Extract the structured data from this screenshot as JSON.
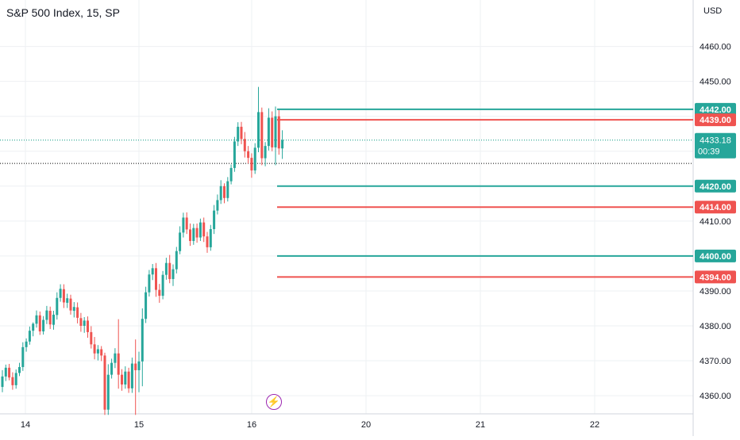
{
  "header": {
    "title": "S&P 500 Index, 15, SP",
    "currency": "USD"
  },
  "colors": {
    "up": "#26a69a",
    "down": "#ef5350",
    "grid": "#eef0f3",
    "axis_text": "#131722",
    "dotted_price": "#089981",
    "dotted_black": "#000000",
    "badge": "#9c27b0"
  },
  "icons": {
    "badge": "lightning-icon"
  },
  "chart_data": {
    "type": "candlestick",
    "title": "S&P 500 Index, 15, SP",
    "ylabel": "USD",
    "ylim": [
      4354.8,
      4473.3
    ],
    "y_ticks": [
      4360,
      4370,
      4380,
      4390,
      4400,
      4410,
      4420,
      4430,
      4440,
      4450,
      4460
    ],
    "y_tick_labels": [
      "4360.00",
      "4370.00",
      "4380.00",
      "4390.00",
      "4400.00",
      "4410.00",
      "4420.00",
      "4430.00",
      "4440.00",
      "4450.00",
      "4460.00"
    ],
    "x_ticks": [
      "14",
      "15",
      "16",
      "20",
      "21",
      "22"
    ],
    "grid": true,
    "current_price": {
      "value": 4433.18,
      "label": "4433.18",
      "countdown": "00:39"
    },
    "reference_line": 4426.5,
    "levels": [
      {
        "value": 4442.0,
        "label": "4442.00",
        "color": "green"
      },
      {
        "value": 4439.0,
        "label": "4439.00",
        "color": "red"
      },
      {
        "value": 4420.0,
        "label": "4420.00",
        "color": "green"
      },
      {
        "value": 4414.0,
        "label": "4414.00",
        "color": "red"
      },
      {
        "value": 4400.0,
        "label": "4400.00",
        "color": "green"
      },
      {
        "value": 4394.0,
        "label": "4394.00",
        "color": "red"
      }
    ],
    "candles": [
      [
        4362.5,
        4367.3,
        4361.0,
        4365.5
      ],
      [
        4365.5,
        4368.9,
        4364.2,
        4368.0
      ],
      [
        4368.0,
        4369.1,
        4364.4,
        4365.2
      ],
      [
        4365.3,
        4366.7,
        4361.7,
        4363.0
      ],
      [
        4363.0,
        4367.5,
        4362.0,
        4366.5
      ],
      [
        4366.5,
        4369.4,
        4365.6,
        4368.2
      ],
      [
        4368.2,
        4375.3,
        4367.1,
        4373.9
      ],
      [
        4373.9,
        4376.4,
        4372.6,
        4375.5
      ],
      [
        4375.5,
        4379.8,
        4374.6,
        4378.6
      ],
      [
        4378.6,
        4381.0,
        4377.0,
        4380.6
      ],
      [
        4380.6,
        4384.4,
        4379.5,
        4383.0
      ],
      [
        4383.0,
        4384.1,
        4377.4,
        4378.4
      ],
      [
        4378.4,
        4382.8,
        4377.5,
        4381.7
      ],
      [
        4381.7,
        4385.7,
        4380.5,
        4384.4
      ],
      [
        4384.3,
        4385.5,
        4379.1,
        4380.4
      ],
      [
        4380.3,
        4384.3,
        4378.9,
        4383.2
      ],
      [
        4383.1,
        4389.6,
        4381.8,
        4388.0
      ],
      [
        4388.0,
        4391.9,
        4386.9,
        4390.6
      ],
      [
        4390.5,
        4391.9,
        4385.1,
        4386.7
      ],
      [
        4386.6,
        4389.2,
        4385.1,
        4387.9
      ],
      [
        4387.8,
        4388.9,
        4383.2,
        4384.4
      ],
      [
        4384.3,
        4386.8,
        4382.4,
        4385.4
      ],
      [
        4385.3,
        4386.7,
        4380.7,
        4382.3
      ],
      [
        4382.2,
        4383.7,
        4378.3,
        4380.0
      ],
      [
        4380.0,
        4382.5,
        4378.0,
        4381.5
      ],
      [
        4381.5,
        4382.7,
        4376.6,
        4378.2
      ],
      [
        4378.2,
        4379.9,
        4373.5,
        4374.7
      ],
      [
        4374.7,
        4376.8,
        4370.4,
        4372.1
      ],
      [
        4372.1,
        4374.5,
        4370.1,
        4373.3
      ],
      [
        4373.3,
        4374.2,
        4369.9,
        4371.5
      ],
      [
        4371.5,
        4372.3,
        4354.5,
        4356.0
      ],
      [
        4356.0,
        4369.0,
        4354.5,
        4366.0
      ],
      [
        4366.0,
        4370.6,
        4364.9,
        4369.4
      ],
      [
        4369.4,
        4373.6,
        4367.9,
        4372.1
      ],
      [
        4372.1,
        4381.9,
        4362.0,
        4366.0
      ],
      [
        4366.0,
        4367.6,
        4361.4,
        4363.2
      ],
      [
        4363.2,
        4368.4,
        4362.0,
        4366.9
      ],
      [
        4366.9,
        4368.0,
        4360.8,
        4362.1
      ],
      [
        4362.1,
        4370.9,
        4360.8,
        4369.2
      ],
      [
        4369.2,
        4376.1,
        4354.5,
        4367.3
      ],
      [
        4367.3,
        4372.6,
        4361.0,
        4369.8
      ],
      [
        4369.8,
        4385.0,
        4362.7,
        4382.0
      ],
      [
        4382.0,
        4391.2,
        4380.8,
        4389.6
      ],
      [
        4389.6,
        4396.0,
        4388.4,
        4394.7
      ],
      [
        4394.7,
        4397.7,
        4393.1,
        4396.5
      ],
      [
        4396.5,
        4398.0,
        4388.3,
        4390.3
      ],
      [
        4390.3,
        4392.0,
        4386.6,
        4388.6
      ],
      [
        4388.6,
        4395.7,
        4387.6,
        4394.6
      ],
      [
        4394.6,
        4399.5,
        4393.2,
        4398.0
      ],
      [
        4398.0,
        4400.3,
        4392.2,
        4393.4
      ],
      [
        4393.4,
        4397.6,
        4391.4,
        4396.2
      ],
      [
        4396.2,
        4402.6,
        4395.0,
        4401.4
      ],
      [
        4401.4,
        4408.5,
        4400.5,
        4406.7
      ],
      [
        4406.7,
        4412.4,
        4405.3,
        4411.0
      ],
      [
        4411.0,
        4412.5,
        4406.3,
        4407.6
      ],
      [
        4407.6,
        4409.3,
        4402.9,
        4404.3
      ],
      [
        4404.3,
        4409.2,
        4403.2,
        4408.0
      ],
      [
        4408.0,
        4409.3,
        4403.8,
        4405.3
      ],
      [
        4405.3,
        4410.7,
        4404.3,
        4409.6
      ],
      [
        4409.6,
        4411.0,
        4404.0,
        4405.6
      ],
      [
        4405.6,
        4406.9,
        4400.9,
        4402.5
      ],
      [
        4402.5,
        4408.9,
        4401.5,
        4407.7
      ],
      [
        4407.7,
        4414.6,
        4406.3,
        4413.0
      ],
      [
        4413.0,
        4417.6,
        4411.9,
        4416.0
      ],
      [
        4416.0,
        4421.7,
        4414.9,
        4420.0
      ],
      [
        4420.0,
        4420.8,
        4415.1,
        4416.6
      ],
      [
        4416.6,
        4422.6,
        4415.6,
        4421.4
      ],
      [
        4421.4,
        4426.2,
        4420.5,
        4425.2
      ],
      [
        4425.2,
        4434.1,
        4424.1,
        4432.8
      ],
      [
        4432.8,
        4438.3,
        4431.5,
        4437.0
      ],
      [
        4437.0,
        4438.4,
        4432.0,
        4433.5
      ],
      [
        4433.5,
        4435.5,
        4428.2,
        4430.0
      ],
      [
        4430.0,
        4431.5,
        4426.5,
        4428.1
      ],
      [
        4428.1,
        4429.4,
        4422.4,
        4424.5
      ],
      [
        4424.5,
        4432.3,
        4423.5,
        4431.0
      ],
      [
        4431.0,
        4448.4,
        4429.7,
        4441.2
      ],
      [
        4441.2,
        4442.5,
        4426.0,
        4428.0
      ],
      [
        4428.0,
        4432.6,
        4425.7,
        4431.5
      ],
      [
        4431.5,
        4442.3,
        4430.2,
        4439.6
      ],
      [
        4439.6,
        4441.4,
        4430.0,
        4431.1
      ],
      [
        4431.1,
        4442.8,
        4426.0,
        4440.0
      ],
      [
        4440.0,
        4441.8,
        4429.0,
        4430.8
      ],
      [
        4430.8,
        4436.0,
        4427.8,
        4433.2
      ]
    ]
  }
}
